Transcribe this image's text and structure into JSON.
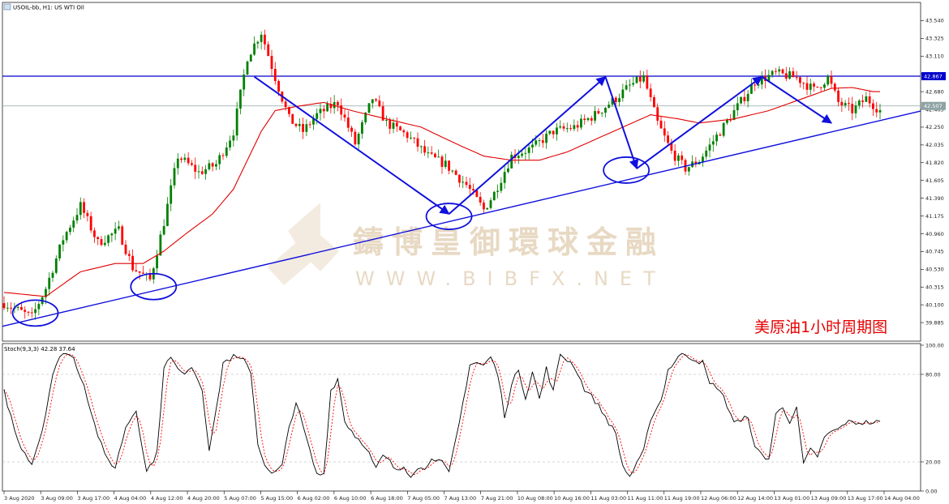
{
  "chart_data": [
    {
      "type": "candlestick",
      "header": "USOIL-bb, H1:  US WTI Oil",
      "annotation": "美原油1小时周期图",
      "watermark_cn": "鑄博皇御環球金融",
      "watermark_en": "WWW.BIBFX.NET",
      "ylim": [
        39.67,
        43.75
      ],
      "y_ticks": [
        "43.540",
        "43.325",
        "43.110",
        "42.895",
        "42.680",
        "42.465",
        "42.250",
        "42.035",
        "41.820",
        "41.605",
        "41.390",
        "41.175",
        "40.960",
        "40.745",
        "40.530",
        "40.315",
        "40.100",
        "39.885"
      ],
      "price_tags": [
        {
          "value": "42.867",
          "line": "blue",
          "color": "#0000cc"
        },
        {
          "value": "42.507",
          "line": "gray",
          "color": "#8fa3a3"
        }
      ],
      "x_ticks": [
        "3 Aug 2020",
        "3 Aug 09:00",
        "3 Aug 17:00",
        "4 Aug 04:00",
        "4 Aug 12:00",
        "4 Aug 20:00",
        "5 Aug 07:00",
        "5 Aug 15:00",
        "6 Aug 02:00",
        "6 Aug 10:00",
        "6 Aug 18:00",
        "7 Aug 05:00",
        "7 Aug 13:00",
        "7 Aug 21:00",
        "10 Aug 08:00",
        "10 Aug 16:00",
        "11 Aug 03:00",
        "11 Aug 11:00",
        "11 Aug 19:00",
        "12 Aug 06:00",
        "12 Aug 14:00",
        "13 Aug 01:00",
        "13 Aug 09:00",
        "13 Aug 17:00",
        "14 Aug 04:00"
      ],
      "up_color": "#008000",
      "down_color": "#ff0000",
      "ma_color": "#e00000",
      "trend_color": "#1010dd",
      "close_anchors": [
        [
          0,
          40.12
        ],
        [
          8,
          39.95
        ],
        [
          12,
          40.3
        ],
        [
          17,
          40.9
        ],
        [
          22,
          41.3
        ],
        [
          27,
          40.85
        ],
        [
          33,
          41.0
        ],
        [
          37,
          40.55
        ],
        [
          42,
          40.4
        ],
        [
          46,
          41.1
        ],
        [
          50,
          41.9
        ],
        [
          56,
          41.7
        ],
        [
          61,
          41.8
        ],
        [
          66,
          42.2
        ],
        [
          70,
          43.1
        ],
        [
          74,
          43.4
        ],
        [
          78,
          42.85
        ],
        [
          82,
          42.35
        ],
        [
          86,
          42.2
        ],
        [
          90,
          42.4
        ],
        [
          96,
          42.55
        ],
        [
          101,
          42.05
        ],
        [
          106,
          42.6
        ],
        [
          110,
          42.3
        ],
        [
          116,
          42.15
        ],
        [
          122,
          41.9
        ],
        [
          127,
          41.8
        ],
        [
          133,
          41.55
        ],
        [
          138,
          41.25
        ],
        [
          141,
          41.45
        ],
        [
          146,
          41.9
        ],
        [
          152,
          42.0
        ],
        [
          158,
          42.2
        ],
        [
          164,
          42.25
        ],
        [
          170,
          42.4
        ],
        [
          176,
          42.6
        ],
        [
          180,
          42.75
        ],
        [
          184,
          42.85
        ],
        [
          188,
          42.3
        ],
        [
          192,
          41.95
        ],
        [
          196,
          41.75
        ],
        [
          200,
          41.85
        ],
        [
          206,
          42.2
        ],
        [
          211,
          42.5
        ],
        [
          216,
          42.8
        ],
        [
          222,
          42.9
        ],
        [
          228,
          42.85
        ],
        [
          233,
          42.7
        ],
        [
          237,
          42.85
        ],
        [
          240,
          42.55
        ],
        [
          244,
          42.45
        ],
        [
          248,
          42.6
        ],
        [
          252,
          42.45
        ]
      ],
      "ma_anchors": [
        [
          0,
          40.25
        ],
        [
          12,
          40.2
        ],
        [
          22,
          40.5
        ],
        [
          32,
          40.6
        ],
        [
          40,
          40.6
        ],
        [
          46,
          40.75
        ],
        [
          52,
          40.95
        ],
        [
          60,
          41.2
        ],
        [
          66,
          41.5
        ],
        [
          70,
          41.85
        ],
        [
          74,
          42.2
        ],
        [
          78,
          42.45
        ],
        [
          84,
          42.5
        ],
        [
          92,
          42.55
        ],
        [
          100,
          42.45
        ],
        [
          110,
          42.35
        ],
        [
          120,
          42.25
        ],
        [
          130,
          42.05
        ],
        [
          138,
          41.9
        ],
        [
          146,
          41.85
        ],
        [
          154,
          41.85
        ],
        [
          162,
          41.95
        ],
        [
          170,
          42.1
        ],
        [
          178,
          42.25
        ],
        [
          186,
          42.4
        ],
        [
          194,
          42.35
        ],
        [
          200,
          42.3
        ],
        [
          210,
          42.35
        ],
        [
          220,
          42.45
        ],
        [
          230,
          42.6
        ],
        [
          238,
          42.72
        ],
        [
          244,
          42.73
        ],
        [
          250,
          42.68
        ]
      ],
      "trendlines": [
        {
          "name": "support",
          "from": [
            0,
            39.84
          ],
          "to": [
            252,
            42.33
          ]
        },
        {
          "name": "resistance",
          "from": [
            0,
            42.867
          ],
          "to": [
            252,
            42.867
          ],
          "horizontal": true
        }
      ],
      "arrows": [
        [
          [
            72,
            42.86
          ],
          [
            128,
            41.2
          ]
        ],
        [
          [
            128,
            41.2
          ],
          [
            173,
            42.86
          ]
        ],
        [
          [
            173,
            42.86
          ],
          [
            182,
            41.75
          ]
        ],
        [
          [
            182,
            41.75
          ],
          [
            218,
            42.86
          ]
        ],
        [
          [
            218,
            42.86
          ],
          [
            238,
            42.3
          ]
        ]
      ],
      "circles": [
        [
          9,
          40.0
        ],
        [
          43,
          40.32
        ],
        [
          128,
          41.17
        ],
        [
          179,
          41.73
        ]
      ]
    },
    {
      "type": "line",
      "name": "Stochastic",
      "header": "Stoch(9,3,3) 42.28 37.64",
      "ylim": [
        0,
        100
      ],
      "y_ticks": [
        "100.00",
        "80.00",
        "20.00",
        "0.00"
      ],
      "levels": [
        80,
        20
      ],
      "main_color": "#000000",
      "signal_color": "#ff0000",
      "k_anchors": [
        [
          0,
          68
        ],
        [
          4,
          34
        ],
        [
          8,
          19
        ],
        [
          11,
          42
        ],
        [
          14,
          80
        ],
        [
          17,
          96
        ],
        [
          20,
          91
        ],
        [
          23,
          73
        ],
        [
          26,
          46
        ],
        [
          29,
          24
        ],
        [
          32,
          16
        ],
        [
          35,
          44
        ],
        [
          38,
          56
        ],
        [
          41,
          13
        ],
        [
          44,
          26
        ],
        [
          46,
          86
        ],
        [
          48,
          91
        ],
        [
          51,
          80
        ],
        [
          54,
          86
        ],
        [
          57,
          70
        ],
        [
          59,
          29
        ],
        [
          61,
          54
        ],
        [
          63,
          88
        ],
        [
          66,
          92
        ],
        [
          69,
          89
        ],
        [
          71,
          82
        ],
        [
          73,
          32
        ],
        [
          75,
          19
        ],
        [
          77,
          11
        ],
        [
          80,
          17
        ],
        [
          82,
          44
        ],
        [
          84,
          61
        ],
        [
          86,
          44
        ],
        [
          88,
          27
        ],
        [
          90,
          11
        ],
        [
          92,
          12
        ],
        [
          94,
          69
        ],
        [
          96,
          77
        ],
        [
          98,
          48
        ],
        [
          101,
          38
        ],
        [
          104,
          31
        ],
        [
          107,
          15
        ],
        [
          109,
          24
        ],
        [
          111,
          20
        ],
        [
          113,
          13
        ],
        [
          115,
          17
        ],
        [
          117,
          11
        ],
        [
          119,
          17
        ],
        [
          121,
          14
        ],
        [
          123,
          24
        ],
        [
          126,
          19
        ],
        [
          128,
          12
        ],
        [
          131,
          47
        ],
        [
          134,
          87
        ],
        [
          136,
          88
        ],
        [
          138,
          86
        ],
        [
          140,
          92
        ],
        [
          142,
          80
        ],
        [
          144,
          52
        ],
        [
          146,
          72
        ],
        [
          148,
          84
        ],
        [
          150,
          64
        ],
        [
          152,
          82
        ],
        [
          154,
          63
        ],
        [
          156,
          84
        ],
        [
          158,
          68
        ],
        [
          160,
          94
        ],
        [
          162,
          90
        ],
        [
          164,
          86
        ],
        [
          167,
          70
        ],
        [
          170,
          62
        ],
        [
          173,
          51
        ],
        [
          176,
          39
        ],
        [
          178,
          17
        ],
        [
          180,
          10
        ],
        [
          182,
          18
        ],
        [
          184,
          27
        ],
        [
          186,
          50
        ],
        [
          189,
          62
        ],
        [
          191,
          83
        ],
        [
          194,
          92
        ],
        [
          196,
          94
        ],
        [
          198,
          91
        ],
        [
          201,
          88
        ],
        [
          203,
          73
        ],
        [
          205,
          72
        ],
        [
          207,
          64
        ],
        [
          210,
          48
        ],
        [
          212,
          47
        ],
        [
          214,
          52
        ],
        [
          216,
          29
        ],
        [
          218,
          25
        ],
        [
          220,
          22
        ],
        [
          222,
          52
        ],
        [
          224,
          58
        ],
        [
          226,
          48
        ],
        [
          228,
          56
        ],
        [
          230,
          18
        ],
        [
          232,
          28
        ],
        [
          234,
          24
        ],
        [
          236,
          36
        ],
        [
          238,
          41
        ],
        [
          240,
          42
        ],
        [
          242,
          47
        ]
      ]
    }
  ]
}
